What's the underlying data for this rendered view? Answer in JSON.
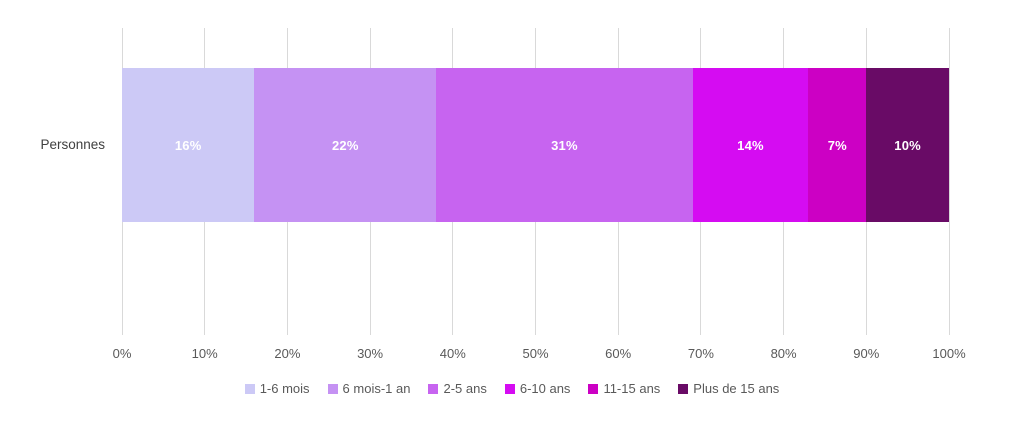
{
  "chart_data": {
    "type": "bar",
    "subtype": "horizontal-stacked-100",
    "title": "",
    "category": "Personnes",
    "x_ticks": [
      "0%",
      "10%",
      "20%",
      "30%",
      "40%",
      "50%",
      "60%",
      "70%",
      "80%",
      "90%",
      "100%"
    ],
    "xlim": [
      0,
      100
    ],
    "grid": "vertical",
    "legend_position": "bottom",
    "segments": [
      {
        "name": "1-6 mois",
        "value": 16,
        "label": "16%",
        "color": "#ccc9f6"
      },
      {
        "name": "6 mois-1 an",
        "value": 22,
        "label": "22%",
        "color": "#c592f3"
      },
      {
        "name": "2-5 ans",
        "value": 31,
        "label": "31%",
        "color": "#c764f0"
      },
      {
        "name": "6-10 ans",
        "value": 14,
        "label": "14%",
        "color": "#d50cf2"
      },
      {
        "name": "11-15 ans",
        "value": 7,
        "label": "7%",
        "color": "#cc00c4"
      },
      {
        "name": "Plus de 15 ans",
        "value": 10,
        "label": "10%",
        "color": "#690b66"
      }
    ],
    "colors": {
      "gridline": "#d9d9d9",
      "axis_text": "#595959",
      "category_text": "#404040",
      "datalabel_text": "#ffffff"
    }
  }
}
